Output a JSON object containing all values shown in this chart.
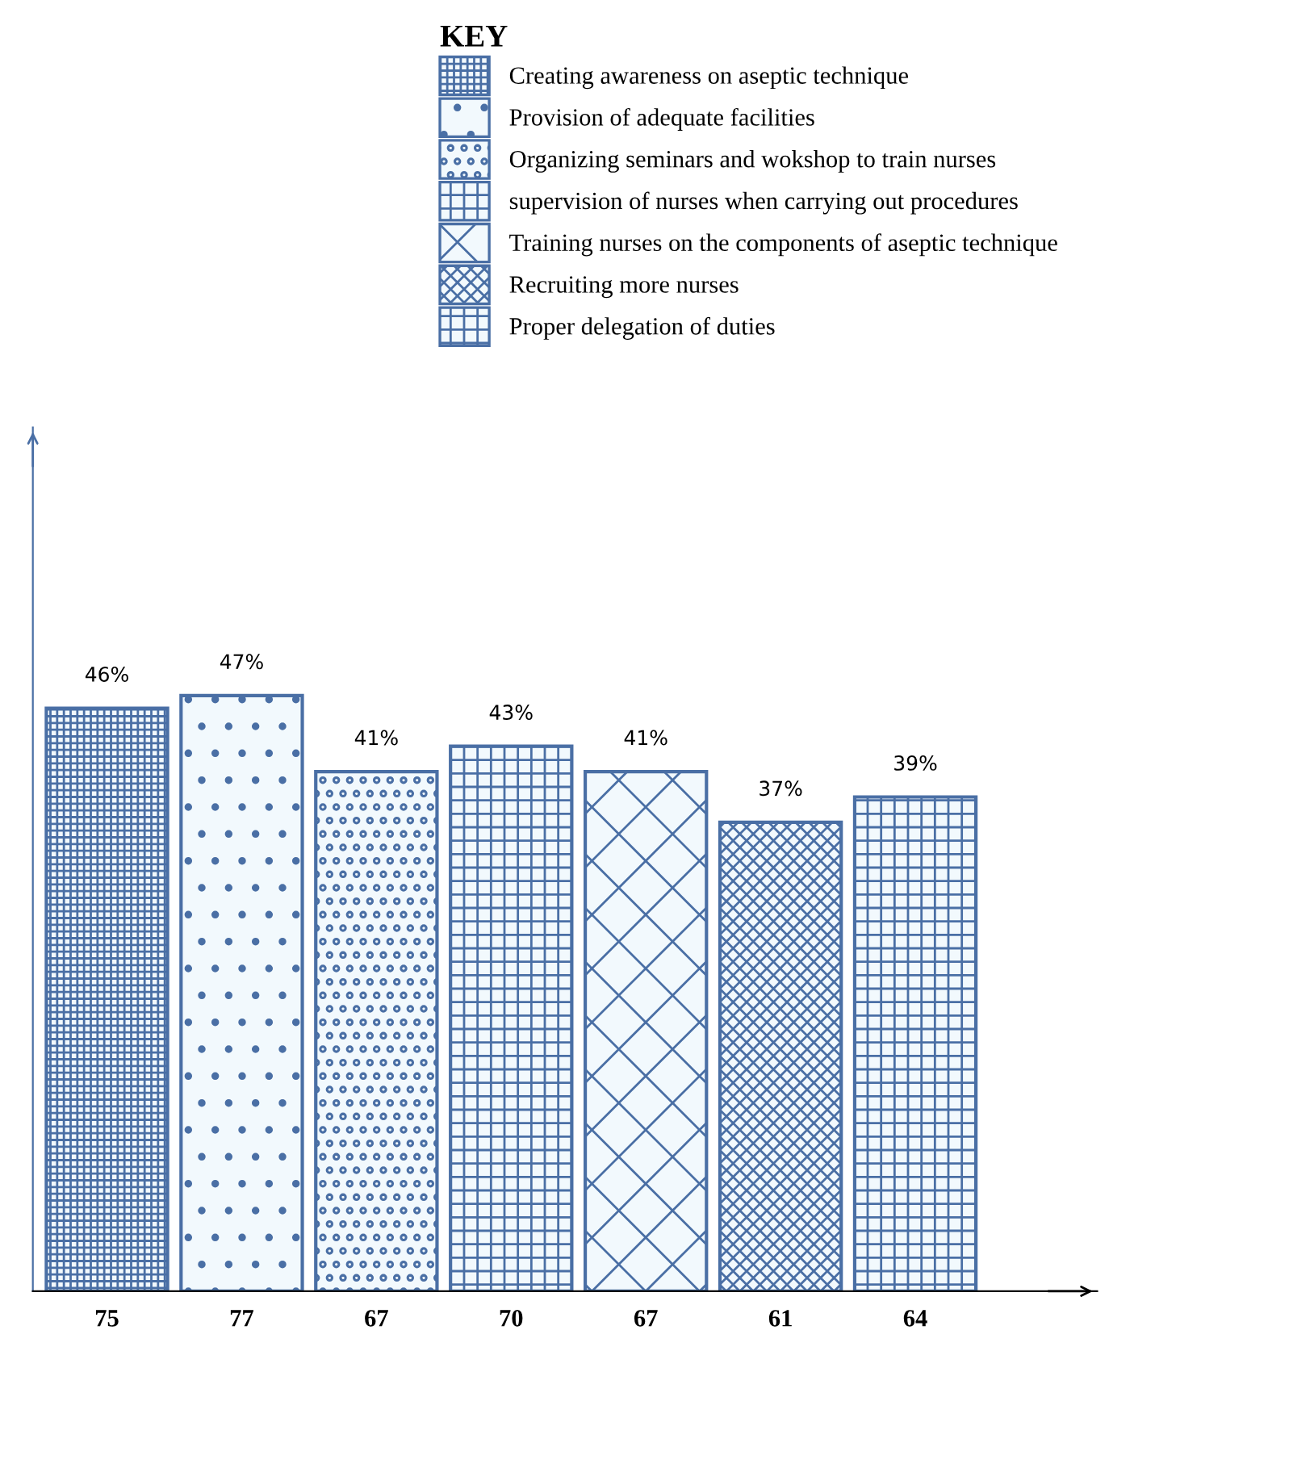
{
  "chart_data": {
    "type": "bar",
    "legend_title": "KEY",
    "legend": "top",
    "categories": [
      "75",
      "77",
      "67",
      "70",
      "67",
      "61",
      "64"
    ],
    "series": [
      {
        "name": "Creating awareness on aseptic technique",
        "color": "#4a6fa5",
        "values": [
          46,
          null,
          null,
          null,
          null,
          null,
          null
        ],
        "value_labels": [
          "46%",
          null,
          null,
          null,
          null,
          null,
          null
        ]
      },
      {
        "name": "Provision of adequate facilities",
        "color": "#4a6fa5",
        "values": [
          null,
          47,
          null,
          null,
          null,
          null,
          null
        ],
        "value_labels": [
          null,
          "47%",
          null,
          null,
          null,
          null,
          null
        ]
      },
      {
        "name": "Organizing seminars and wokshop to train nurses",
        "color": "#4a6fa5",
        "values": [
          null,
          null,
          41,
          null,
          null,
          null,
          null
        ],
        "value_labels": [
          null,
          null,
          "41%",
          null,
          null,
          null,
          null
        ]
      },
      {
        "name": "supervision of nurses when carrying out procedures",
        "color": "#4a6fa5",
        "values": [
          null,
          null,
          null,
          43,
          null,
          null,
          null
        ],
        "value_labels": [
          null,
          null,
          null,
          "43%",
          null,
          null,
          null
        ]
      },
      {
        "name": "Training nurses on the components of aseptic technique",
        "color": "#4a6fa5",
        "values": [
          null,
          null,
          null,
          null,
          41,
          null,
          null
        ],
        "value_labels": [
          null,
          null,
          null,
          null,
          "41%",
          null,
          null
        ]
      },
      {
        "name": "Recruiting more nurses",
        "color": "#4a6fa5",
        "values": [
          null,
          null,
          null,
          null,
          null,
          37,
          null
        ],
        "value_labels": [
          null,
          null,
          null,
          null,
          null,
          "37%",
          null
        ]
      },
      {
        "name": "Proper delegation of duties",
        "color": "#4a6fa5",
        "values": [
          null,
          null,
          null,
          null,
          null,
          null,
          39
        ],
        "value_labels": [
          null,
          null,
          null,
          null,
          null,
          null,
          "39%"
        ]
      }
    ]
  }
}
